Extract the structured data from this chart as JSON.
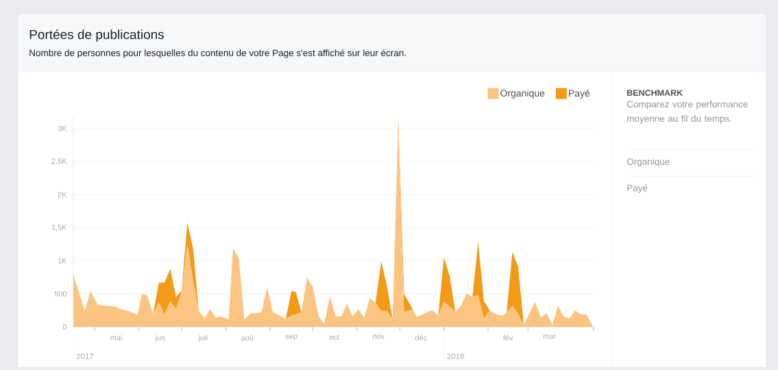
{
  "chart_data": {
    "type": "area",
    "stacked": true,
    "title": "Portées de publications",
    "subtitle": "Nombre de personnes pour lesquelles du contenu de votre Page s'est affiché sur leur écran.",
    "x": [
      "2017-04-16",
      "2017-04-24",
      "2017-04-28",
      "2017-05-03",
      "2017-05-07",
      "2017-05-15",
      "2017-05-18",
      "2017-05-26",
      "2017-05-31",
      "2017-06-03",
      "2017-06-07",
      "2017-06-11",
      "2017-06-15",
      "2017-06-19",
      "2017-06-23",
      "2017-06-27",
      "2017-07-01",
      "2017-07-05",
      "2017-07-09",
      "2017-07-13",
      "2017-07-17",
      "2017-07-21",
      "2017-07-25",
      "2017-07-28",
      "2017-08-03",
      "2017-08-06",
      "2017-08-10",
      "2017-08-14",
      "2017-08-18",
      "2017-08-26",
      "2017-08-30",
      "2017-09-03",
      "2017-09-08",
      "2017-09-12",
      "2017-09-16",
      "2017-09-19",
      "2017-09-23",
      "2017-09-27",
      "2017-10-01",
      "2017-10-05",
      "2017-10-09",
      "2017-10-13",
      "2017-10-17",
      "2017-10-21",
      "2017-10-25",
      "2017-10-29",
      "2017-11-02",
      "2017-11-06",
      "2017-11-10",
      "2017-11-14",
      "2017-11-18",
      "2017-11-22",
      "2017-11-26",
      "2017-11-30",
      "2017-12-04",
      "2017-12-10",
      "2017-12-13",
      "2017-12-17",
      "2017-12-21",
      "2017-12-24",
      "2017-12-28",
      "2018-01-01",
      "2018-01-05",
      "2018-01-09",
      "2018-01-13",
      "2018-01-17",
      "2018-01-21",
      "2018-01-25",
      "2018-01-29",
      "2018-02-02",
      "2018-02-07",
      "2018-02-11",
      "2018-02-14",
      "2018-02-18",
      "2018-02-22",
      "2018-02-26",
      "2018-03-06",
      "2018-03-10",
      "2018-03-14",
      "2018-03-18",
      "2018-03-22",
      "2018-03-26",
      "2018-03-30",
      "2018-04-03",
      "2018-04-07",
      "2018-04-11",
      "2018-04-15"
    ],
    "series": [
      {
        "name": "Organique",
        "color": "#fbc581",
        "values": [
          790,
          240,
          540,
          340,
          320,
          310,
          280,
          230,
          180,
          500,
          470,
          200,
          370,
          190,
          390,
          270,
          530,
          1250,
          700,
          240,
          130,
          270,
          140,
          160,
          120,
          1190,
          1040,
          110,
          200,
          220,
          600,
          220,
          170,
          120,
          170,
          190,
          220,
          750,
          600,
          160,
          50,
          460,
          160,
          160,
          350,
          160,
          270,
          140,
          440,
          360,
          240,
          240,
          120,
          3000,
          220,
          270,
          150,
          190,
          230,
          250,
          170,
          380,
          310,
          230,
          320,
          510,
          450,
          480,
          120,
          250,
          190,
          170,
          220,
          320,
          200,
          30,
          380,
          140,
          210,
          30,
          320,
          150,
          130,
          250,
          190,
          190,
          30
        ]
      },
      {
        "name": "Payé",
        "color": "#f39a17",
        "values": [
          0,
          0,
          0,
          0,
          0,
          0,
          0,
          0,
          0,
          0,
          0,
          0,
          300,
          480,
          490,
          180,
          20,
          330,
          490,
          0,
          0,
          0,
          0,
          0,
          0,
          0,
          0,
          0,
          0,
          0,
          0,
          0,
          0,
          0,
          370,
          340,
          0,
          0,
          0,
          0,
          0,
          0,
          0,
          0,
          0,
          0,
          0,
          0,
          0,
          0,
          750,
          380,
          0,
          130,
          280,
          0,
          0,
          0,
          0,
          0,
          0,
          670,
          460,
          0,
          0,
          0,
          0,
          810,
          270,
          0,
          0,
          0,
          0,
          810,
          720,
          0,
          0,
          0,
          0,
          0,
          0,
          0,
          0,
          0,
          0,
          0,
          0
        ]
      }
    ],
    "xlim": [
      "2017-04-16",
      "2018-04-16"
    ],
    "xticks": [
      {
        "value": "2017-05-01",
        "label": null
      },
      {
        "value": "2017-06-01",
        "label": null
      },
      {
        "value": "2017-07-01",
        "label": null
      },
      {
        "value": "2017-08-01",
        "label": null
      },
      {
        "value": "2017-09-01",
        "label": null
      },
      {
        "value": "2017-10-01",
        "label": null
      },
      {
        "value": "2017-11-01",
        "label": null
      },
      {
        "value": "2017-12-01",
        "label": null
      },
      {
        "value": "2018-01-01",
        "label": null
      },
      {
        "value": "2018-02-01",
        "label": null
      },
      {
        "value": "2018-03-01",
        "label": null
      },
      {
        "value": "2018-04-16",
        "label": null
      },
      {
        "value": "2017-05-16",
        "label": "mai"
      },
      {
        "value": "2017-06-16",
        "label": "jun"
      },
      {
        "value": "2017-07-16",
        "label": "juil"
      },
      {
        "value": "2017-08-16",
        "label": "aoû"
      },
      {
        "value": "2017-09-16",
        "label": "sep"
      },
      {
        "value": "2017-10-16",
        "label": "oct"
      },
      {
        "value": "2017-11-16",
        "label": "nov"
      },
      {
        "value": "2017-12-16",
        "label": "déc"
      },
      {
        "value": "2018-02-15",
        "label": "fév"
      },
      {
        "value": "2018-03-16",
        "label": "mar"
      }
    ],
    "ylim": [
      0,
      3200
    ],
    "yticks": [
      0,
      500,
      {
        "value": 1000,
        "label": "1K"
      },
      {
        "value": 1500,
        "label": "1,5K"
      },
      {
        "value": 2000,
        "label": "2K"
      },
      {
        "value": 2500,
        "label": "2,5K"
      },
      {
        "value": 3000,
        "label": "3K"
      }
    ],
    "grid": "y",
    "legend": "top right",
    "annotations": [
      "2017",
      "2018",
      "BENCHMARK",
      "Comparez votre performance moyenne au fil du temps.",
      "Organique",
      "Payé"
    ]
  }
}
